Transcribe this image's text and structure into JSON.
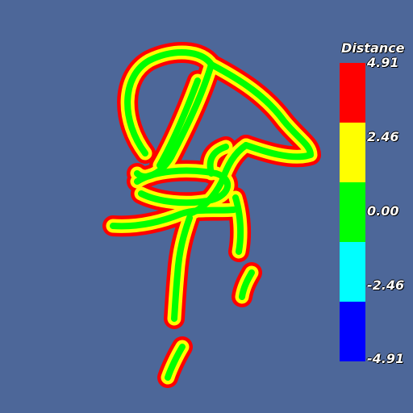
{
  "legend": {
    "title": "Distance",
    "ticks": [
      "4.91",
      "2.46",
      "0.00",
      "-2.46",
      "-4.91"
    ],
    "bands": [
      "#ff0000",
      "#ffff00",
      "#00ff00",
      "#00ffff",
      "#0000ff"
    ]
  },
  "colors": {
    "background": "#4d6799",
    "outer": "#ff0000",
    "middle": "#ffff00",
    "inner": "#00ff00"
  }
}
